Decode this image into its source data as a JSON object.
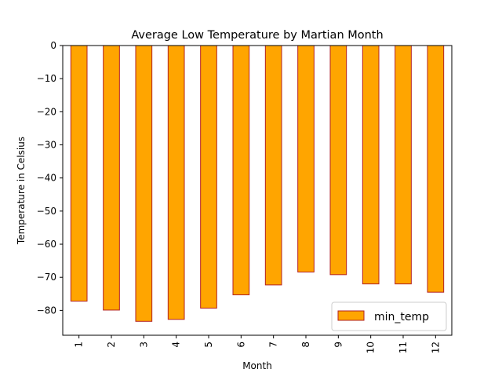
{
  "chart_data": {
    "type": "bar",
    "title": "Average Low Temperature by Martian Month",
    "xlabel": "Month",
    "ylabel": "Temperature in Celsius",
    "categories": [
      "1",
      "2",
      "3",
      "4",
      "5",
      "6",
      "7",
      "8",
      "9",
      "10",
      "11",
      "12"
    ],
    "series": [
      {
        "name": "min_temp",
        "values": [
          -77.2,
          -79.9,
          -83.3,
          -82.7,
          -79.3,
          -75.3,
          -72.3,
          -68.4,
          -69.2,
          -72.0,
          -72.0,
          -74.5
        ]
      }
    ],
    "ylim": [
      -87.5,
      0
    ],
    "yticks": [
      0,
      -10,
      -20,
      -30,
      -40,
      -50,
      -60,
      -70,
      -80
    ],
    "ytick_labels": [
      "0",
      "−10",
      "−20",
      "−30",
      "−40",
      "−50",
      "−60",
      "−70",
      "−80"
    ],
    "grid": false,
    "legend_position": "lower right",
    "colors": {
      "bar_fill": "#ffa500",
      "bar_edge": "#b22222",
      "axes": "#000000"
    }
  }
}
